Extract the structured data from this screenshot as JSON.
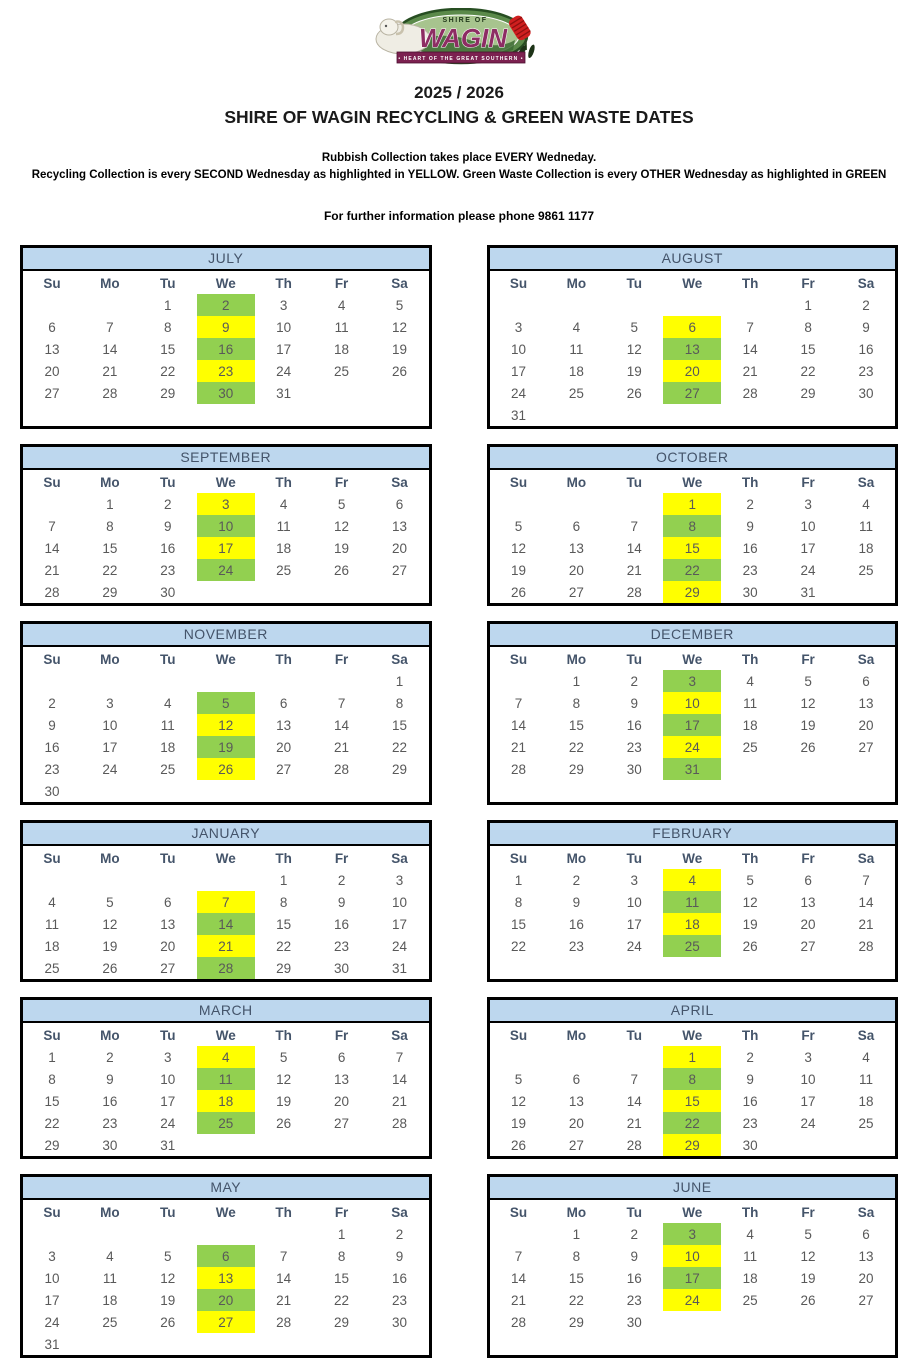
{
  "header": {
    "year_title": "2025 / 2026",
    "main_title": "SHIRE OF WAGIN RECYCLING & GREEN WASTE DATES",
    "note_rubbish": "Rubbish Collection takes place EVERY Wedneday.",
    "note_collections": "Recycling Collection is every SECOND Wednesday as highlighted in YELLOW.  Green Waste Collection is every OTHER Wednesday as highlighted in GREEN",
    "note_phone": "For further information please phone 9861 1177"
  },
  "logo": {
    "top_text": "SHIRE OF",
    "main_text": "WAGIN",
    "banner_text": "• HEART OF THE GREAT SOUTHERN •"
  },
  "colors": {
    "recycling_yellow": "#FFFF00",
    "greenwaste_green": "#92D050",
    "month_header_bg": "#BDD7EE",
    "header_text": "#44546A",
    "day_number_text": "#595959"
  },
  "calendar": {
    "weekday_headers": [
      "Su",
      "Mo",
      "Tu",
      "We",
      "Th",
      "Fr",
      "Sa"
    ],
    "wednesday_column_index": 3,
    "months": [
      {
        "name": "JULY",
        "first_dow": 2,
        "num_days": 31,
        "yellow_dates": [
          9,
          23
        ],
        "green_dates": [
          2,
          16,
          30
        ]
      },
      {
        "name": "AUGUST",
        "first_dow": 5,
        "num_days": 31,
        "yellow_dates": [
          6,
          20
        ],
        "green_dates": [
          13,
          27
        ]
      },
      {
        "name": "SEPTEMBER",
        "first_dow": 1,
        "num_days": 30,
        "yellow_dates": [
          3,
          17
        ],
        "green_dates": [
          10,
          24
        ]
      },
      {
        "name": "OCTOBER",
        "first_dow": 3,
        "num_days": 31,
        "yellow_dates": [
          1,
          15,
          29
        ],
        "green_dates": [
          8,
          22
        ]
      },
      {
        "name": "NOVEMBER",
        "first_dow": 6,
        "num_days": 30,
        "yellow_dates": [
          12,
          26
        ],
        "green_dates": [
          5,
          19
        ]
      },
      {
        "name": "DECEMBER",
        "first_dow": 1,
        "num_days": 31,
        "yellow_dates": [
          10,
          24
        ],
        "green_dates": [
          3,
          17,
          31
        ]
      },
      {
        "name": "JANUARY",
        "first_dow": 4,
        "num_days": 31,
        "yellow_dates": [
          7,
          21
        ],
        "green_dates": [
          14,
          28
        ]
      },
      {
        "name": "FEBRUARY",
        "first_dow": 0,
        "num_days": 28,
        "yellow_dates": [
          4,
          18
        ],
        "green_dates": [
          11,
          25
        ]
      },
      {
        "name": "MARCH",
        "first_dow": 0,
        "num_days": 31,
        "yellow_dates": [
          4,
          18
        ],
        "green_dates": [
          11,
          25
        ]
      },
      {
        "name": "APRIL",
        "first_dow": 3,
        "num_days": 30,
        "yellow_dates": [
          1,
          15,
          29
        ],
        "green_dates": [
          8,
          22
        ]
      },
      {
        "name": "MAY",
        "first_dow": 5,
        "num_days": 31,
        "yellow_dates": [
          13,
          27
        ],
        "green_dates": [
          6,
          20
        ]
      },
      {
        "name": "JUNE",
        "first_dow": 1,
        "num_days": 30,
        "yellow_dates": [
          10,
          24
        ],
        "green_dates": [
          3,
          17
        ]
      }
    ]
  }
}
